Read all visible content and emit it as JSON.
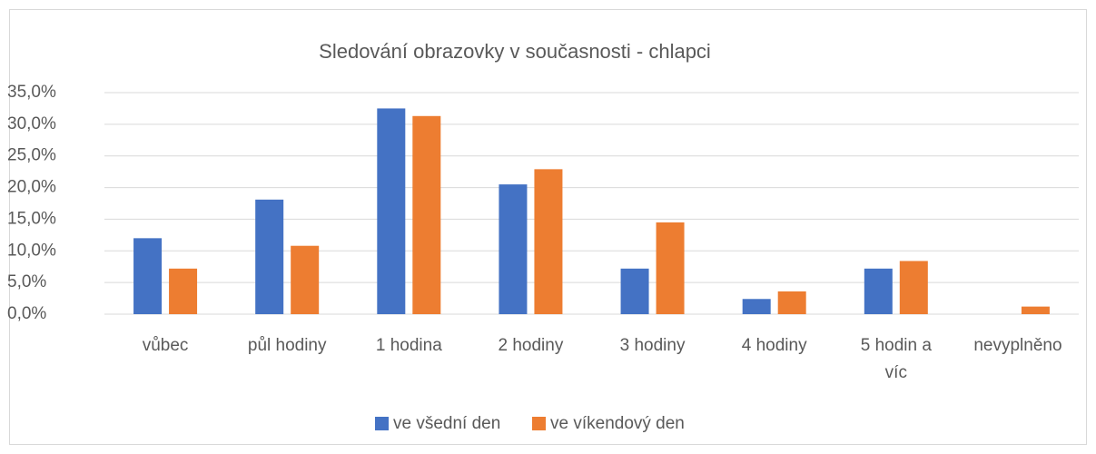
{
  "chart_data": {
    "type": "bar",
    "title": "Sledování obrazovky v současnosti - chlapci",
    "categories": [
      "vůbec",
      "půl hodiny",
      "1 hodina",
      "2 hodiny",
      "3 hodiny",
      "4 hodiny",
      "5 hodin a víc",
      "nevyplněno"
    ],
    "series": [
      {
        "name": "ve všední den",
        "color": "#4472c4",
        "values": [
          12.0,
          18.1,
          32.5,
          20.5,
          7.2,
          2.4,
          7.2,
          0
        ]
      },
      {
        "name": "ve víkendový den",
        "color": "#ed7d31",
        "values": [
          7.2,
          10.8,
          31.3,
          22.9,
          14.5,
          3.6,
          8.4,
          1.2
        ]
      }
    ],
    "ylim": [
      0,
      35
    ],
    "yticks": [
      {
        "value": 0,
        "label": "0,0%"
      },
      {
        "value": 5,
        "label": "5,0%"
      },
      {
        "value": 10,
        "label": "10,0%"
      },
      {
        "value": 15,
        "label": "15,0%"
      },
      {
        "value": 20,
        "label": "20,0%"
      },
      {
        "value": 25,
        "label": "25,0%"
      },
      {
        "value": 30,
        "label": "30,0%"
      },
      {
        "value": 35,
        "label": "35,0%"
      }
    ],
    "grid": true,
    "legend": "bottom"
  }
}
